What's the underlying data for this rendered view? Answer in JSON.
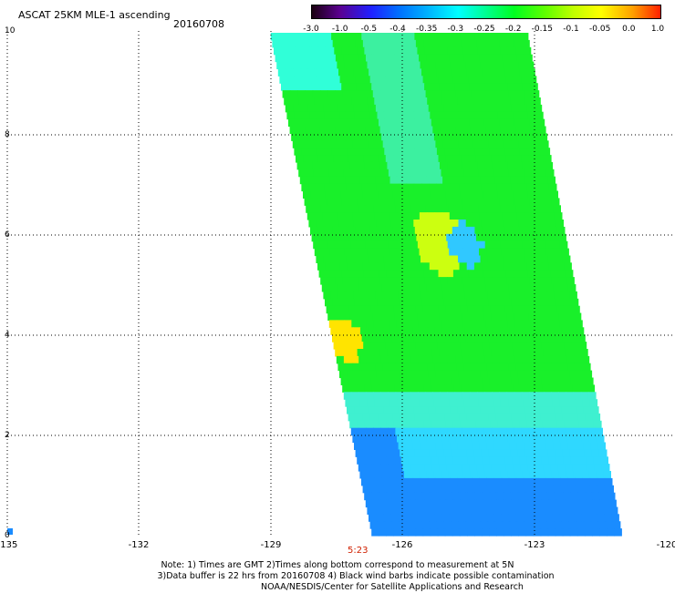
{
  "header": {
    "title": "ASCAT 25KM MLE-1 ascending",
    "date": "20160708"
  },
  "colorbar": {
    "labels": [
      "-3.0",
      "-1.0",
      "-0.5",
      "-0.4",
      "-0.35",
      "-0.3",
      "-0.25",
      "-0.2",
      "-0.15",
      "-0.1",
      "-0.05",
      "0.0",
      "1.0"
    ],
    "colors": [
      "#1a0010",
      "#5a0090",
      "#2020ff",
      "#0070ff",
      "#00b0ff",
      "#00ffff",
      "#00ff90",
      "#00ff20",
      "#60ff00",
      "#c0ff00",
      "#ffff00",
      "#ffa000",
      "#ff2000"
    ]
  },
  "map": {
    "x_ticks": [
      "-135",
      "-132",
      "-129",
      "-126",
      "-123",
      "-120"
    ],
    "y_ticks": [
      "0",
      "2",
      "4",
      "6",
      "8",
      "10"
    ],
    "time_label": "5:23"
  },
  "footer": {
    "line1": "Note: 1) Times are GMT 2)Times along bottom correspond to measurement at 5N",
    "line2": "3)Data buffer is 22 hrs from 20160708 4) Black wind barbs indicate possible contamination",
    "line3": "NOAA/NESDIS/Center for Satellite Applications and Research"
  }
}
